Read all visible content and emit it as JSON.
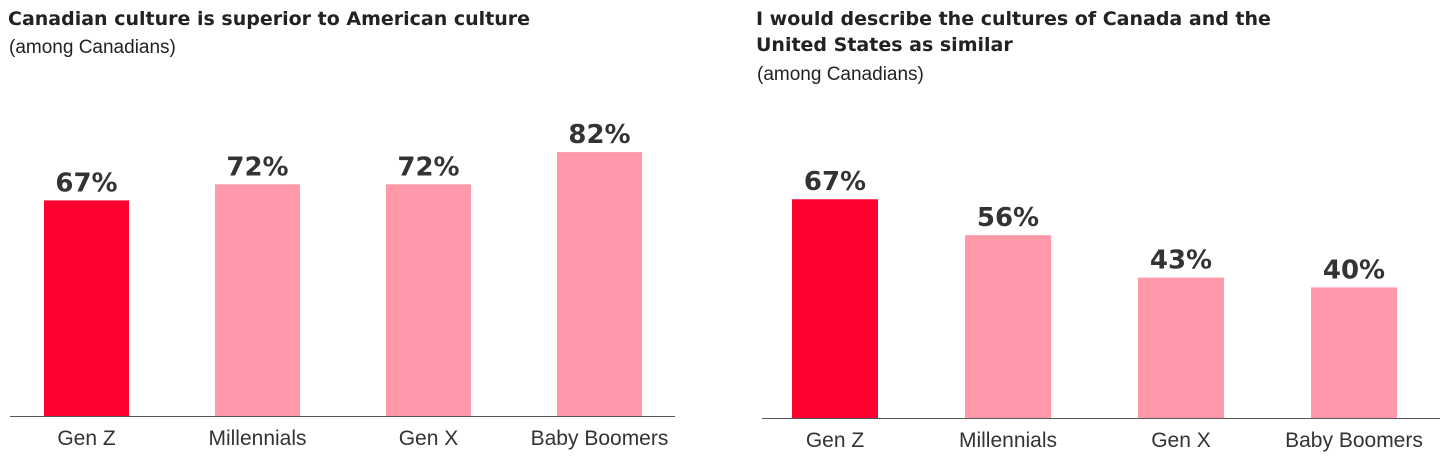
{
  "chart_data": [
    {
      "type": "bar",
      "title": "Canadian culture is superior to American culture",
      "subtitle": "(among Canadians)",
      "categories": [
        "Gen Z",
        "Millennials",
        "Gen X",
        "Baby Boomers"
      ],
      "values": [
        67,
        72,
        72,
        82
      ],
      "value_labels": [
        "67%",
        "72%",
        "72%",
        "82%"
      ],
      "unit": "%",
      "ylim": [
        0,
        100
      ],
      "grid": false,
      "highlight_index": 0,
      "colors": {
        "highlight": "#FF002F",
        "default": "#FF98A9",
        "axis": "#555555"
      }
    },
    {
      "type": "bar",
      "title": "I would describe the cultures of Canada and the United States as similar",
      "subtitle": "(among Canadians)",
      "categories": [
        "Gen Z",
        "Millennials",
        "Gen X",
        "Baby Boomers"
      ],
      "values": [
        67,
        56,
        43,
        40
      ],
      "value_labels": [
        "67%",
        "56%",
        "43%",
        "40%"
      ],
      "unit": "%",
      "ylim": [
        0,
        100
      ],
      "grid": false,
      "highlight_index": 0,
      "colors": {
        "highlight": "#FF002F",
        "default": "#FF98A9",
        "axis": "#555555"
      }
    }
  ]
}
